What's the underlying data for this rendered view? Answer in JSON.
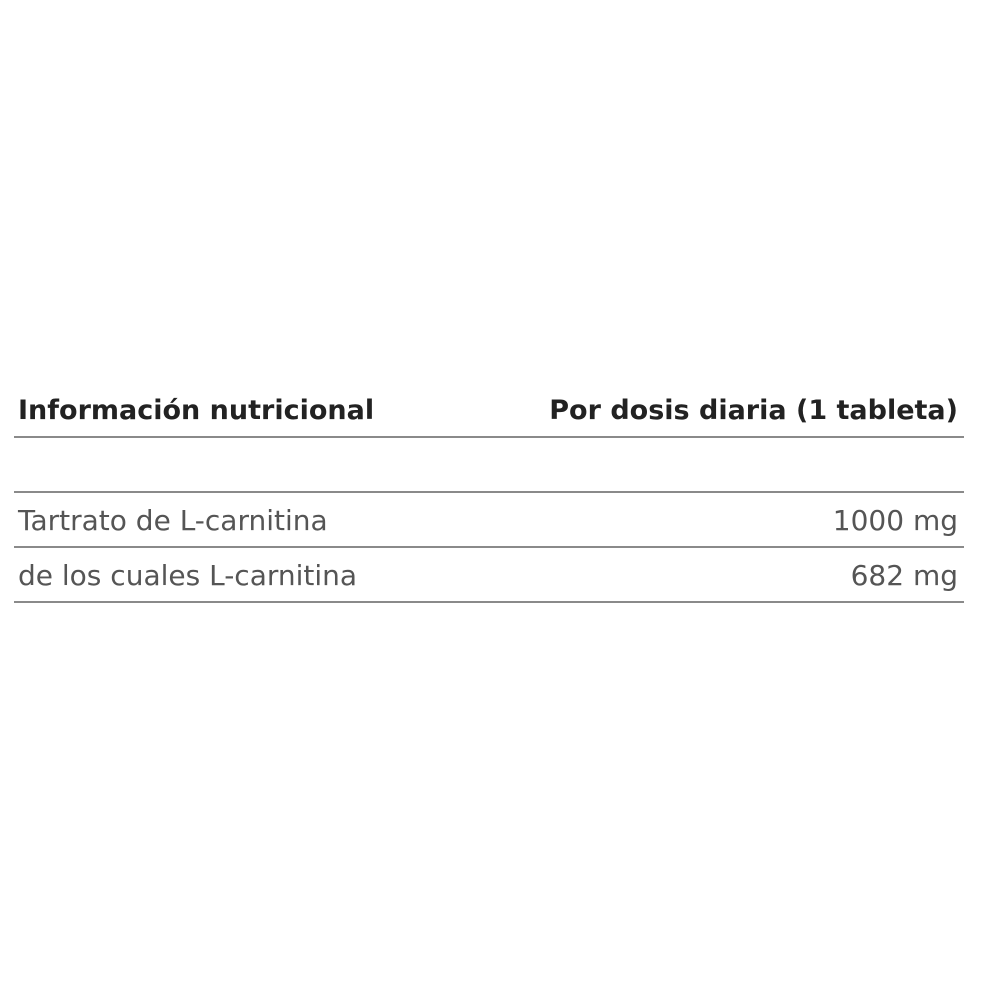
{
  "table": {
    "header": {
      "label": "Información nutricional",
      "value": "Por dosis diaria (1 tableta)"
    },
    "rows": [
      {
        "label": "Tartrato de L-carnitina",
        "value": "1000 mg"
      },
      {
        "label": "de los cuales L-carnitina",
        "value": "682 mg"
      }
    ]
  },
  "colors": {
    "header_text": "#222222",
    "row_text": "#555555",
    "rule": "#8a8a8a"
  }
}
